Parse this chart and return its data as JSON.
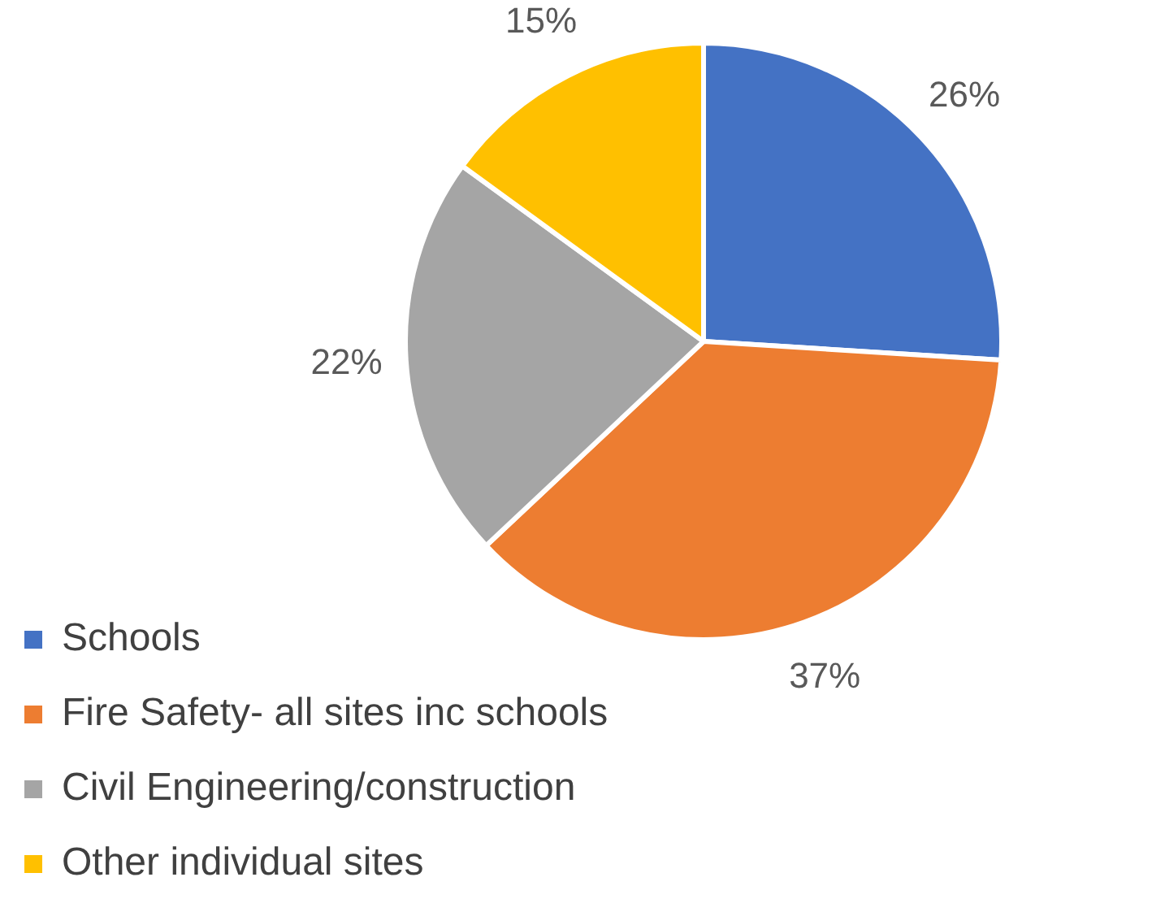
{
  "chart_data": {
    "type": "pie",
    "categories": [
      "Schools",
      "Fire Safety- all sites inc schools",
      "Civil Engineering/construction",
      "Other individual sites"
    ],
    "values": [
      26,
      37,
      22,
      15
    ],
    "colors": [
      "#4472c4",
      "#ed7d31",
      "#a5a5a5",
      "#ffc000"
    ],
    "value_labels": [
      "26%",
      "37%",
      "22%",
      "15%"
    ],
    "legend": "bottom left"
  }
}
